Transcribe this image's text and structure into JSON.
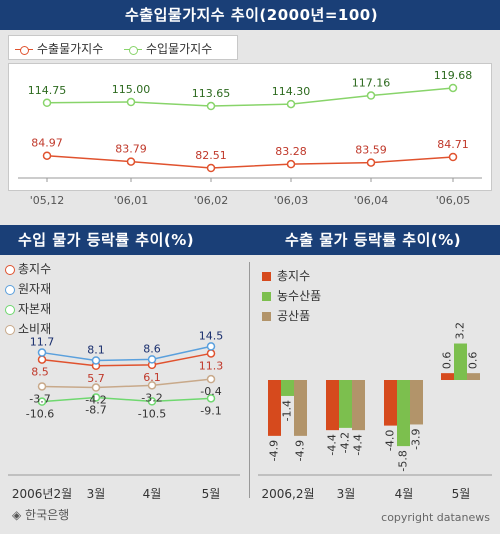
{
  "header": {
    "title": "수출입물가지수 추이(2000년=100)",
    "left_title": "수입 물가 등락률 추이(%)",
    "right_title": "수출 물가 등락률 추이(%)"
  },
  "footer": {
    "source": "◈ 한국은행",
    "copyright": "copyright datanews"
  },
  "colors": {
    "header_bg": "#1a3f77",
    "export": "#e0522e",
    "import": "#88d46a",
    "raw": "#5aa0dd",
    "capital": "#6fd86f",
    "consumer": "#c8a98a",
    "total_bar": "#d64a1d",
    "agri_bar": "#7cbf4e",
    "industrial_bar": "#b2946a"
  },
  "chart_data": [
    {
      "type": "line",
      "title": "수출입물가지수 추이(2000년=100)",
      "categories": [
        "'05,12",
        "'06,01",
        "'06,02",
        "'06,03",
        "'06,04",
        "'06,05"
      ],
      "series": [
        {
          "name": "수출물가지수",
          "values": [
            84.97,
            83.79,
            82.51,
            83.28,
            83.59,
            84.71
          ],
          "labels": [
            "84.97",
            "83.79",
            "82.51",
            "83.28",
            "83.59",
            "84.71"
          ]
        },
        {
          "name": "수입물가지수",
          "values": [
            114.75,
            115.0,
            113.65,
            114.3,
            117.16,
            119.68
          ],
          "labels": [
            "114.75",
            "115.00",
            "113.65",
            "114.30",
            "117.16",
            "119.68"
          ]
        }
      ],
      "grid": false,
      "legend": "top-left"
    },
    {
      "type": "line",
      "title": "수입 물가 등락률 추이(%)",
      "categories": [
        "2006년2월",
        "3월",
        "4월",
        "5월"
      ],
      "series": [
        {
          "name": "총지수",
          "values": [
            8.5,
            5.7,
            6.1,
            11.3
          ]
        },
        {
          "name": "원자재",
          "values": [
            11.7,
            8.1,
            8.6,
            14.5
          ]
        },
        {
          "name": "자본재",
          "values": [
            -10.6,
            -8.7,
            -10.5,
            -9.1
          ]
        },
        {
          "name": "소비재",
          "values": [
            -3.7,
            -4.2,
            -3.2,
            -0.4
          ]
        }
      ],
      "grid": false,
      "legend": "top-left"
    },
    {
      "type": "bar",
      "title": "수출 물가 등락률 추이(%)",
      "categories": [
        "2006,2월",
        "3월",
        "4월",
        "5월"
      ],
      "series": [
        {
          "name": "총지수",
          "values": [
            -4.9,
            -4.4,
            -4.0,
            0.6
          ]
        },
        {
          "name": "농수산품",
          "values": [
            -1.4,
            -4.2,
            -5.8,
            3.2
          ]
        },
        {
          "name": "공산품",
          "values": [
            -4.9,
            -4.4,
            -3.9,
            0.6
          ]
        }
      ],
      "grid": false,
      "legend": "top-left"
    }
  ]
}
